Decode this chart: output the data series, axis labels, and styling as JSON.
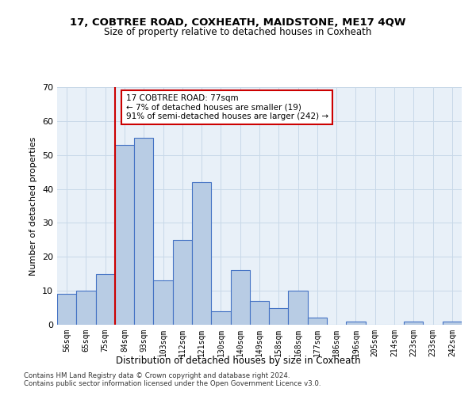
{
  "title": "17, COBTREE ROAD, COXHEATH, MAIDSTONE, ME17 4QW",
  "subtitle": "Size of property relative to detached houses in Coxheath",
  "xlabel": "Distribution of detached houses by size in Coxheath",
  "ylabel": "Number of detached properties",
  "categories": [
    "56sqm",
    "65sqm",
    "75sqm",
    "84sqm",
    "93sqm",
    "103sqm",
    "112sqm",
    "121sqm",
    "130sqm",
    "140sqm",
    "149sqm",
    "158sqm",
    "168sqm",
    "177sqm",
    "186sqm",
    "196sqm",
    "205sqm",
    "214sqm",
    "223sqm",
    "233sqm",
    "242sqm"
  ],
  "bar_values": [
    9,
    10,
    15,
    53,
    55,
    13,
    25,
    42,
    4,
    16,
    7,
    5,
    10,
    2,
    0,
    1,
    0,
    0,
    1,
    0,
    1
  ],
  "bar_color": "#b8cce4",
  "bar_edge_color": "#4472c4",
  "annotation_text": "17 COBTREE ROAD: 77sqm\n← 7% of detached houses are smaller (19)\n91% of semi-detached houses are larger (242) →",
  "vline_x": 2.5,
  "vline_color": "#cc0000",
  "ylim": [
    0,
    70
  ],
  "yticks": [
    0,
    10,
    20,
    30,
    40,
    50,
    60,
    70
  ],
  "grid_color": "#c8d8e8",
  "bg_color": "#e8f0f8",
  "footer_line1": "Contains HM Land Registry data © Crown copyright and database right 2024.",
  "footer_line2": "Contains public sector information licensed under the Open Government Licence v3.0."
}
